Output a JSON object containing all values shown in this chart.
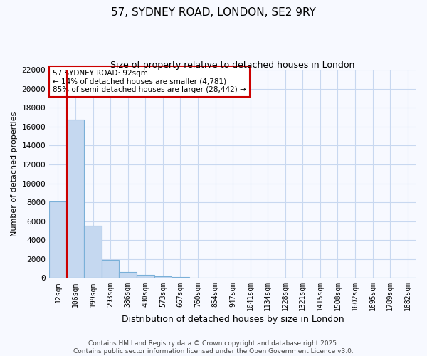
{
  "title1": "57, SYDNEY ROAD, LONDON, SE2 9RY",
  "title2": "Size of property relative to detached houses in London",
  "xlabel": "Distribution of detached houses by size in London",
  "ylabel": "Number of detached properties",
  "bar_color": "#c5d8f0",
  "bar_edge_color": "#7ab0d8",
  "background_color": "#f7f9ff",
  "plot_bg_color": "#f7f9ff",
  "grid_color": "#c8d8f0",
  "annotation_text": "57 SYDNEY ROAD: 92sqm\n← 14% of detached houses are smaller (4,781)\n85% of semi-detached houses are larger (28,442) →",
  "vline_color": "#cc0000",
  "categories": [
    "12sqm",
    "106sqm",
    "199sqm",
    "293sqm",
    "386sqm",
    "480sqm",
    "573sqm",
    "667sqm",
    "760sqm",
    "854sqm",
    "947sqm",
    "1041sqm",
    "1134sqm",
    "1228sqm",
    "1321sqm",
    "1415sqm",
    "1508sqm",
    "1602sqm",
    "1695sqm",
    "1789sqm",
    "1882sqm"
  ],
  "values": [
    8100,
    16700,
    5500,
    1900,
    650,
    350,
    175,
    100,
    70,
    50,
    35,
    25,
    18,
    12,
    9,
    7,
    5,
    4,
    3,
    2,
    1
  ],
  "ylim": [
    0,
    22000
  ],
  "yticks": [
    0,
    2000,
    4000,
    6000,
    8000,
    10000,
    12000,
    14000,
    16000,
    18000,
    20000,
    22000
  ],
  "footnote": "Contains HM Land Registry data © Crown copyright and database right 2025.\nContains public sector information licensed under the Open Government Licence v3.0.",
  "annotation_box_color": "white",
  "annotation_box_edge": "#cc0000",
  "title1_fontsize": 11,
  "title2_fontsize": 9
}
